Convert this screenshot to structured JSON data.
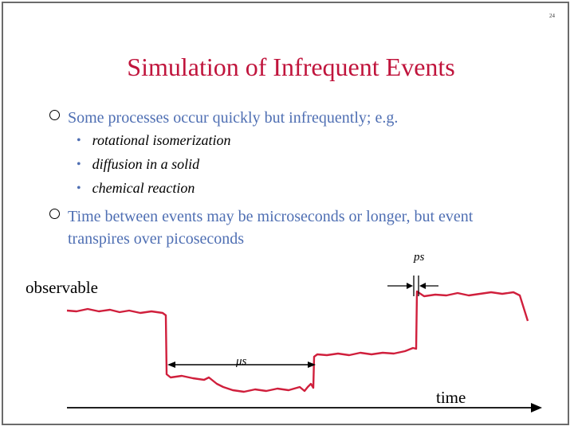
{
  "page": {
    "number": "24"
  },
  "title": "Simulation of Infrequent Events",
  "bullets": [
    {
      "text": "Some processes occur quickly but infrequently; e.g.",
      "sub": [
        "rotational isomerization",
        "diffusion in a solid",
        "chemical reaction"
      ]
    },
    {
      "text": "Time between events may be microseconds or longer, but event transpires over picoseconds"
    }
  ],
  "diagram": {
    "y_label": "observable",
    "x_label": "time",
    "short_interval_label": "ps",
    "long_interval_label": "μs",
    "signal_color": "#d01f3c"
  }
}
